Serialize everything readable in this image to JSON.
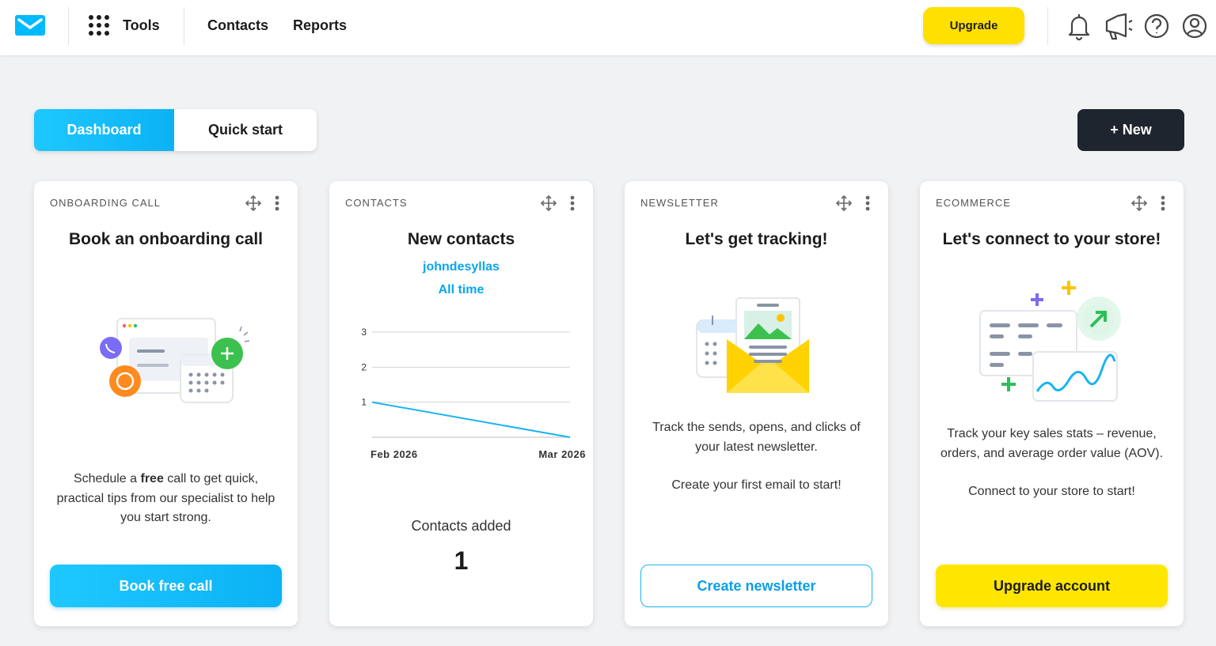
{
  "nav": {
    "tools": "Tools",
    "items": [
      "Contacts",
      "Reports"
    ],
    "upgrade": "Upgrade"
  },
  "tabs": [
    "Dashboard",
    "Quick start"
  ],
  "new_button": "+ New",
  "cards": [
    {
      "label": "ONBOARDING CALL",
      "title": "Book an onboarding call",
      "text": [
        "Schedule a ",
        "free",
        " call to get quick, practical tips from our specialist to help you start strong."
      ],
      "button": "Book free call"
    },
    {
      "label": "CONTACTS",
      "title": "New contacts",
      "account": "johndesyllas",
      "period": "All time",
      "stat_label": "Contacts added",
      "stat_value": 1
    },
    {
      "label": "NEWSLETTER",
      "title": "Let's get tracking!",
      "text": [
        "Track the sends, opens, and clicks of your latest newsletter.",
        "Create your first email to start!"
      ],
      "button": "Create newsletter"
    },
    {
      "label": "ECOMMERCE",
      "title": "Let's connect to your store!",
      "text": [
        "Track your key sales stats – revenue, orders, and average order value (AOV).",
        "Connect to your store to start!"
      ],
      "button": "Upgrade account"
    }
  ],
  "chart_data": {
    "type": "line",
    "categories": [
      "Feb 2026",
      "Mar 2026"
    ],
    "values": [
      1,
      0
    ],
    "color": "#1ab4f0",
    "ylim": [
      0,
      3
    ],
    "yticks": [
      1,
      2,
      3
    ],
    "grid": true
  }
}
